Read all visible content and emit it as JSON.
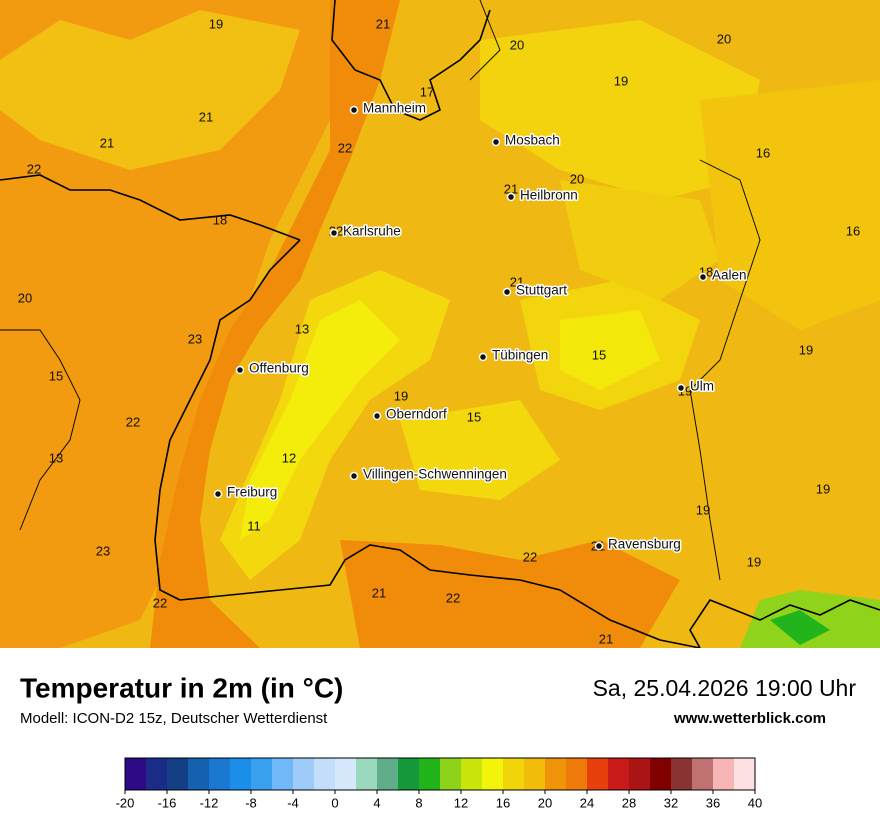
{
  "header": {
    "title": "Temperatur in 2m (in °C)",
    "model": "Modell: ICON-D2 15z, Deutscher Wetterdienst",
    "date": "Sa, 25.04.2026 19:00 Uhr",
    "website": "www.wetterblick.com"
  },
  "map": {
    "cities": [
      "Mannheim",
      "Mosbach",
      "Heilbronn",
      "Karlsruhe",
      "Aalen",
      "Stuttgart",
      "Tübingen",
      "Offenburg",
      "Ulm",
      "Oberndorf",
      "Villingen-Schwenningen",
      "Freiburg",
      "Ravensburg"
    ],
    "temperatures": [
      19,
      21,
      20,
      20,
      19,
      17,
      21,
      21,
      22,
      16,
      22,
      20,
      21,
      18,
      22,
      16,
      20,
      21,
      18,
      13,
      23,
      19,
      15,
      15,
      19,
      19,
      15,
      22,
      13,
      12,
      19,
      19,
      11,
      23,
      22,
      21,
      19,
      21,
      22,
      22,
      21
    ]
  },
  "legend": {
    "range": [
      -20,
      40
    ],
    "ticks": [
      -20,
      -16,
      -12,
      -8,
      -4,
      0,
      4,
      8,
      12,
      16,
      20,
      24,
      28,
      32,
      36,
      40
    ],
    "colors": [
      "#2e0a86",
      "#1a2c88",
      "#143f85",
      "#1660b0",
      "#1a78d0",
      "#1a8ee8",
      "#3aa0f0",
      "#70b8f8",
      "#9ecbf8",
      "#c2defb",
      "#d5e8fc",
      "#9ad9bd",
      "#5fad8b",
      "#15983a",
      "#22b51b",
      "#8dd31a",
      "#c9e50a",
      "#f2f50a",
      "#f2d40a",
      "#f2bc0a",
      "#f0950a",
      "#ee7a0a",
      "#e8400c",
      "#c81a18",
      "#aa1414",
      "#800000",
      "#8a3333",
      "#c07272",
      "#f7b5b5",
      "#fde0e2"
    ]
  }
}
